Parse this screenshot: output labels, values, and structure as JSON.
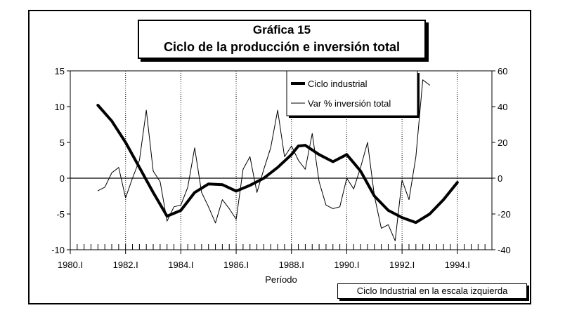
{
  "title_line1": "Gráfica 15",
  "title_line2": "Ciclo de la producción e inversión total",
  "footnote": "Ciclo Industrial en la escala izquierda",
  "chart_data": {
    "type": "line",
    "xlabel": "Período",
    "x_tick_labels": [
      "1980.I",
      "1982.I",
      "1984.I",
      "1986.I",
      "1988.I",
      "1990.I",
      "1992.I",
      "1994.I"
    ],
    "x_tick_values": [
      1980,
      1982,
      1984,
      1986,
      1988,
      1990,
      1992,
      1994
    ],
    "xlim": [
      1980,
      1995.25
    ],
    "ylim_left": [
      -10,
      15
    ],
    "ylim_right": [
      -40,
      60
    ],
    "y_ticks_left": [
      15,
      10,
      5,
      0,
      -5,
      -10
    ],
    "y_ticks_right": [
      60,
      40,
      20,
      0,
      -20,
      -40
    ],
    "grid_x": true,
    "legend_position": "top-right",
    "series": [
      {
        "name": "Ciclo industrial",
        "axis": "left",
        "color": "#000000",
        "width": 4,
        "x": [
          1981.0,
          1981.5,
          1982.0,
          1982.5,
          1983.0,
          1983.5,
          1984.0,
          1984.5,
          1985.0,
          1985.5,
          1986.0,
          1986.5,
          1987.0,
          1987.5,
          1988.0,
          1988.25,
          1988.5,
          1989.0,
          1989.5,
          1990.0,
          1990.5,
          1991.0,
          1991.5,
          1992.0,
          1992.5,
          1993.0,
          1993.5,
          1994.0
        ],
        "y": [
          10.2,
          8.0,
          5.0,
          1.5,
          -2.0,
          -5.3,
          -4.5,
          -2.0,
          -0.8,
          -0.9,
          -1.8,
          -1.0,
          0.0,
          1.5,
          3.3,
          4.5,
          4.6,
          3.3,
          2.3,
          3.3,
          1.0,
          -2.5,
          -4.5,
          -5.5,
          -6.2,
          -5.0,
          -3.0,
          -0.6
        ]
      },
      {
        "name": "Var % inversión total",
        "axis": "right",
        "color": "#000000",
        "width": 1,
        "x": [
          1981.0,
          1981.25,
          1981.5,
          1981.75,
          1982.0,
          1982.25,
          1982.5,
          1982.75,
          1983.0,
          1983.25,
          1983.5,
          1983.75,
          1984.0,
          1984.25,
          1984.5,
          1984.75,
          1985.0,
          1985.25,
          1985.5,
          1985.75,
          1986.0,
          1986.25,
          1986.5,
          1986.75,
          1987.0,
          1987.25,
          1987.5,
          1987.75,
          1988.0,
          1988.25,
          1988.5,
          1988.75,
          1989.0,
          1989.25,
          1989.5,
          1989.75,
          1990.0,
          1990.25,
          1990.5,
          1990.75,
          1991.0,
          1991.25,
          1991.5,
          1991.75,
          1992.0,
          1992.25,
          1992.5,
          1992.75,
          1993.0
        ],
        "y": [
          -7,
          -5,
          3,
          6,
          -11,
          0,
          10,
          38,
          4,
          -2,
          -24,
          -16,
          -15,
          -5,
          17,
          -8,
          -16,
          -25,
          -12,
          -17,
          -23,
          5,
          12,
          -8,
          5,
          17,
          38,
          12,
          18,
          10,
          5,
          25,
          -2,
          -15,
          -17,
          -16,
          0,
          -6,
          6,
          20,
          -10,
          -28,
          -26,
          -35,
          -1,
          -12,
          12,
          55,
          52
        ]
      }
    ]
  }
}
